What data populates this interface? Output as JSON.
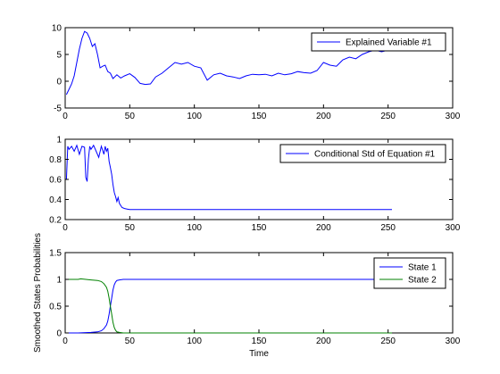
{
  "chart_data": [
    {
      "type": "line",
      "title": "",
      "xlabel": "",
      "ylabel": "",
      "xlim": [
        0,
        300
      ],
      "ylim": [
        -5,
        10
      ],
      "xticks": [
        "0",
        "50",
        "100",
        "150",
        "200",
        "250",
        "300"
      ],
      "yticks": [
        "-5",
        "0",
        "5",
        "10"
      ],
      "grid": false,
      "legend_position": "top-right",
      "series": [
        {
          "name": "Explained Variable #1",
          "color": "#0000ff",
          "x": [
            1,
            3,
            5,
            7,
            9,
            11,
            13,
            15,
            17,
            19,
            21,
            23,
            25,
            27,
            29,
            31,
            33,
            35,
            37,
            40,
            43,
            46,
            50,
            54,
            58,
            62,
            66,
            70,
            75,
            80,
            85,
            90,
            95,
            100,
            105,
            110,
            115,
            120,
            125,
            130,
            135,
            140,
            145,
            150,
            155,
            160,
            165,
            170,
            175,
            180,
            185,
            190,
            195,
            200,
            205,
            210,
            215,
            220,
            225,
            230,
            235,
            240,
            245,
            250,
            253
          ],
          "values": [
            -2.5,
            -1.5,
            -0.5,
            1.0,
            3.5,
            6.0,
            8.0,
            9.3,
            9.0,
            8.0,
            6.5,
            7.0,
            5.0,
            2.5,
            2.8,
            3.0,
            1.8,
            1.5,
            0.5,
            1.2,
            0.6,
            1.0,
            1.4,
            0.7,
            -0.4,
            -0.6,
            -0.5,
            0.8,
            1.5,
            2.5,
            3.5,
            3.2,
            3.5,
            2.8,
            2.5,
            0.2,
            1.2,
            1.5,
            1.0,
            0.8,
            0.5,
            1.0,
            1.3,
            1.2,
            1.3,
            1.0,
            1.5,
            1.2,
            1.4,
            1.8,
            1.6,
            1.5,
            2.0,
            3.5,
            3.0,
            2.8,
            4.0,
            4.5,
            4.2,
            5.0,
            5.5,
            5.8,
            5.5,
            5.8,
            6.0
          ]
        }
      ]
    },
    {
      "type": "line",
      "title": "",
      "xlabel": "",
      "ylabel": "",
      "xlim": [
        0,
        300
      ],
      "ylim": [
        0.2,
        1
      ],
      "xticks": [
        "0",
        "50",
        "100",
        "150",
        "200",
        "250",
        "300"
      ],
      "yticks": [
        "0.2",
        "0.4",
        "0.6",
        "0.8",
        "1"
      ],
      "grid": false,
      "legend_position": "top-right",
      "series": [
        {
          "name": "Conditional Std of Equation #1",
          "color": "#0000ff",
          "x": [
            1,
            2,
            3,
            5,
            7,
            9,
            11,
            13,
            15,
            16,
            17,
            18,
            19,
            20,
            22,
            24,
            26,
            28,
            30,
            31,
            32,
            33,
            34,
            35,
            36,
            37,
            38,
            39,
            40,
            41,
            42,
            44,
            46,
            48,
            50,
            55,
            60,
            80,
            100,
            150,
            200,
            253
          ],
          "values": [
            0.6,
            0.93,
            0.9,
            0.93,
            0.88,
            0.94,
            0.85,
            0.93,
            0.92,
            0.62,
            0.58,
            0.8,
            0.93,
            0.9,
            0.94,
            0.88,
            0.82,
            0.93,
            0.85,
            0.93,
            0.88,
            0.91,
            0.78,
            0.72,
            0.65,
            0.55,
            0.47,
            0.43,
            0.38,
            0.42,
            0.36,
            0.32,
            0.31,
            0.305,
            0.3,
            0.3,
            0.3,
            0.3,
            0.3,
            0.3,
            0.3,
            0.3
          ]
        }
      ]
    },
    {
      "type": "line",
      "title": "",
      "xlabel": "Time",
      "ylabel": "Smoothed States Probabilities",
      "xlim": [
        0,
        300
      ],
      "ylim": [
        0,
        1.5
      ],
      "xticks": [
        "0",
        "50",
        "100",
        "150",
        "200",
        "250",
        "300"
      ],
      "yticks": [
        "0",
        "0.5",
        "1",
        "1.5"
      ],
      "grid": false,
      "legend_position": "top-right",
      "series": [
        {
          "name": "State 1",
          "color": "#0000ff",
          "x": [
            1,
            10,
            20,
            25,
            28,
            30,
            32,
            33,
            34,
            35,
            36,
            37,
            38,
            39,
            40,
            42,
            45,
            50,
            100,
            150,
            200,
            253
          ],
          "values": [
            0.0,
            0.0,
            0.01,
            0.02,
            0.04,
            0.08,
            0.15,
            0.22,
            0.35,
            0.5,
            0.65,
            0.8,
            0.9,
            0.95,
            0.98,
            0.99,
            1.0,
            1.0,
            1.0,
            1.0,
            1.0,
            1.0
          ]
        },
        {
          "name": "State 2",
          "color": "#008000",
          "x": [
            1,
            10,
            12,
            20,
            25,
            28,
            30,
            32,
            33,
            34,
            35,
            36,
            37,
            38,
            39,
            40,
            42,
            45,
            50,
            100,
            150,
            200,
            253
          ],
          "values": [
            1.0,
            1.0,
            1.01,
            0.99,
            0.98,
            0.96,
            0.92,
            0.85,
            0.78,
            0.65,
            0.5,
            0.35,
            0.2,
            0.1,
            0.05,
            0.02,
            0.01,
            0.0,
            0.0,
            0.0,
            0.0,
            0.0,
            0.0
          ]
        }
      ]
    }
  ]
}
